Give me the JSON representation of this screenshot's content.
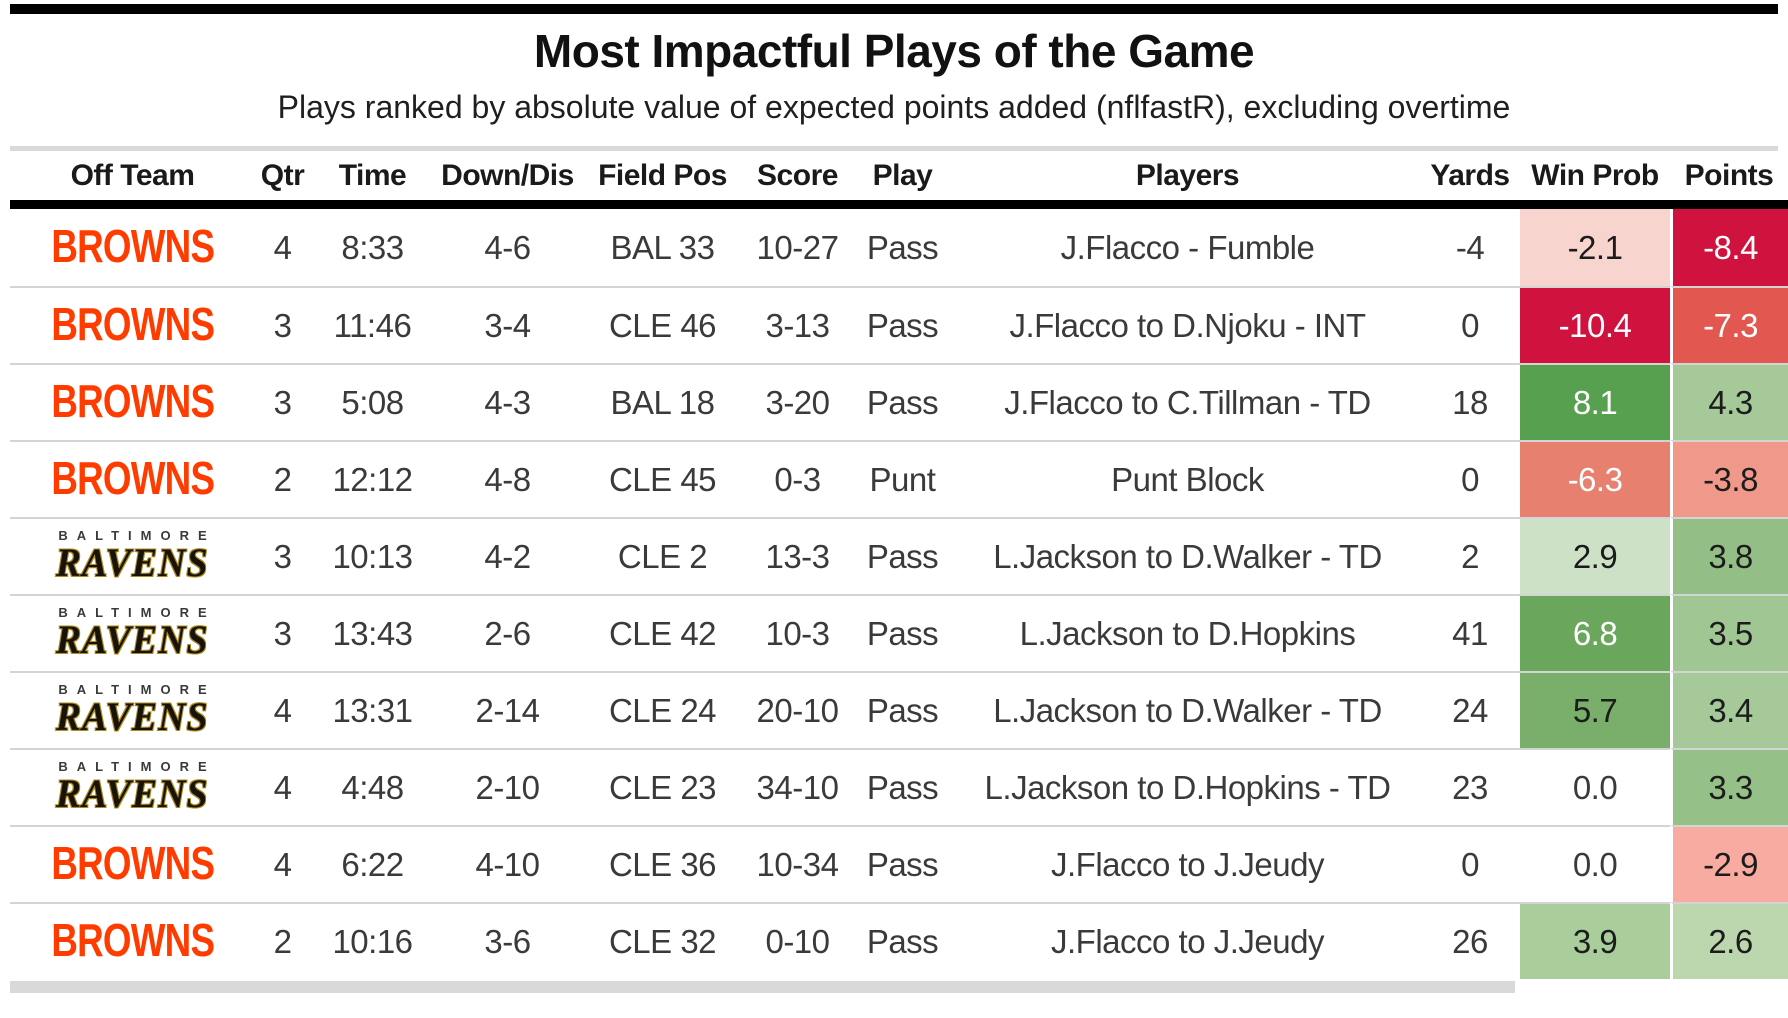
{
  "chart_data": {
    "type": "table",
    "title": "Most Impactful Plays of the Game",
    "subtitle": "Plays ranked by absolute value of expected points added (nflfastR), excluding overtime",
    "columns": [
      "Off Team",
      "Qtr",
      "Time",
      "Down/Dis",
      "Field Pos",
      "Score",
      "Play",
      "Players",
      "Yards",
      "Win Prob",
      "Points"
    ],
    "teams": {
      "browns": {
        "name": "BROWNS",
        "color": "#ff3c00"
      },
      "ravens": {
        "name": "RAVENS",
        "city": "BALTIMORE",
        "color": "#17120a",
        "outline": "#ad8b1f"
      }
    },
    "rows": [
      {
        "team": "BROWNS",
        "qtr": "4",
        "time": "8:33",
        "down_dis": "4-6",
        "field_pos": "BAL 33",
        "score": "10-27",
        "play": "Pass",
        "players": "J.Flacco - Fumble",
        "yards": "-4",
        "win_prob": "-2.1",
        "win_prob_bg": "#f8d4cf",
        "win_prob_text": "#1c1c1c",
        "points": "-8.4",
        "points_bg": "#d0123e",
        "points_text": "#ffffff"
      },
      {
        "team": "BROWNS",
        "qtr": "3",
        "time": "11:46",
        "down_dis": "3-4",
        "field_pos": "CLE 46",
        "score": "3-13",
        "play": "Pass",
        "players": "J.Flacco to D.Njoku - INT",
        "yards": "0",
        "win_prob": "-10.4",
        "win_prob_bg": "#d0123e",
        "win_prob_text": "#ffffff",
        "points": "-7.3",
        "points_bg": "#e25750",
        "points_text": "#ffffff"
      },
      {
        "team": "BROWNS",
        "qtr": "3",
        "time": "5:08",
        "down_dis": "4-3",
        "field_pos": "BAL 18",
        "score": "3-20",
        "play": "Pass",
        "players": "J.Flacco to C.Tillman - TD",
        "yards": "18",
        "win_prob": "8.1",
        "win_prob_bg": "#56a050",
        "win_prob_text": "#ffffff",
        "points": "4.3",
        "points_bg": "#a6c999",
        "points_text": "#1c1c1c"
      },
      {
        "team": "BROWNS",
        "qtr": "2",
        "time": "12:12",
        "down_dis": "4-8",
        "field_pos": "CLE 45",
        "score": "0-3",
        "play": "Punt",
        "players": "Punt Block",
        "yards": "0",
        "win_prob": "-6.3",
        "win_prob_bg": "#e8806f",
        "win_prob_text": "#ffffff",
        "points": "-3.8",
        "points_bg": "#f0998b",
        "points_text": "#1c1c1c"
      },
      {
        "team": "RAVENS",
        "qtr": "3",
        "time": "10:13",
        "down_dis": "4-2",
        "field_pos": "CLE 2",
        "score": "13-3",
        "play": "Pass",
        "players": "L.Jackson to D.Walker - TD",
        "yards": "2",
        "win_prob": "2.9",
        "win_prob_bg": "#cde1c6",
        "win_prob_text": "#1c1c1c",
        "points": "3.8",
        "points_bg": "#93be85",
        "points_text": "#1c1c1c"
      },
      {
        "team": "RAVENS",
        "qtr": "3",
        "time": "13:43",
        "down_dis": "2-6",
        "field_pos": "CLE 42",
        "score": "10-3",
        "play": "Pass",
        "players": "L.Jackson to D.Hopkins",
        "yards": "41",
        "win_prob": "6.8",
        "win_prob_bg": "#6ba65d",
        "win_prob_text": "#ffffff",
        "points": "3.5",
        "points_bg": "#a0c693",
        "points_text": "#1c1c1c"
      },
      {
        "team": "RAVENS",
        "qtr": "4",
        "time": "13:31",
        "down_dis": "2-14",
        "field_pos": "CLE 24",
        "score": "20-10",
        "play": "Pass",
        "players": "L.Jackson to D.Walker - TD",
        "yards": "24",
        "win_prob": "5.7",
        "win_prob_bg": "#7aaf6b",
        "win_prob_text": "#1c1c1c",
        "points": "3.4",
        "points_bg": "#a5c998",
        "points_text": "#1c1c1c"
      },
      {
        "team": "RAVENS",
        "qtr": "4",
        "time": "4:48",
        "down_dis": "2-10",
        "field_pos": "CLE 23",
        "score": "34-10",
        "play": "Pass",
        "players": "L.Jackson to D.Hopkins - TD",
        "yards": "23",
        "win_prob": "0.0",
        "win_prob_bg": "#ffffff",
        "win_prob_text": "#3a3a3a",
        "points": "3.3",
        "points_bg": "#95c087",
        "points_text": "#1c1c1c"
      },
      {
        "team": "BROWNS",
        "qtr": "4",
        "time": "6:22",
        "down_dis": "4-10",
        "field_pos": "CLE 36",
        "score": "10-34",
        "play": "Pass",
        "players": "J.Flacco to J.Jeudy",
        "yards": "0",
        "win_prob": "0.0",
        "win_prob_bg": "#ffffff",
        "win_prob_text": "#3a3a3a",
        "points": "-2.9",
        "points_bg": "#f8aba0",
        "points_text": "#1c1c1c"
      },
      {
        "team": "BROWNS",
        "qtr": "2",
        "time": "10:16",
        "down_dis": "3-6",
        "field_pos": "CLE 32",
        "score": "0-10",
        "play": "Pass",
        "players": "J.Flacco to J.Jeudy",
        "yards": "26",
        "win_prob": "3.9",
        "win_prob_bg": "#a9cd9b",
        "win_prob_text": "#1c1c1c",
        "points": "2.6",
        "points_bg": "#bcd7ae",
        "points_text": "#1c1c1c"
      }
    ]
  }
}
